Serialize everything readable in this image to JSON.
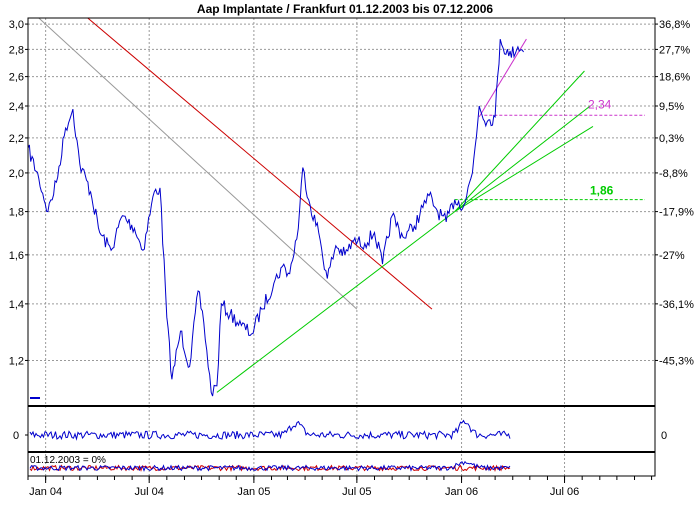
{
  "chart_data": {
    "type": "line",
    "title": "Aap Implantate / Frankfurt 01.12.2003 bis 07.12.2006",
    "y_scale": "log",
    "ylim": [
      1.06,
      3.05
    ],
    "x_range": [
      "2003-12-01",
      "2006-12-07"
    ],
    "grid": true,
    "y_ticks_left": [
      "3,0",
      "2,8",
      "2,6",
      "2,4",
      "2,2",
      "2,0",
      "1,8",
      "1,6",
      "1,4",
      "1,2"
    ],
    "y_ticks_right": [
      "36,8%",
      "27,7%",
      "18,6%",
      "9,5%",
      "0,3%",
      "-8,8%",
      "-17,9%",
      "-27%",
      "-36,1%",
      "-45,3%"
    ],
    "x_ticks": [
      {
        "date": "2004-01-01",
        "label": "Jan 04"
      },
      {
        "date": "2004-07-01",
        "label": "Jul 04"
      },
      {
        "date": "2005-01-01",
        "label": "Jan 05"
      },
      {
        "date": "2005-07-01",
        "label": "Jul 05"
      },
      {
        "date": "2006-01-01",
        "label": "Jan 06"
      },
      {
        "date": "2006-07-01",
        "label": "Jul 06"
      }
    ],
    "series": [
      {
        "color": "#0000cc",
        "points": [
          [
            "2003-12-01",
            2.14
          ],
          [
            "2003-12-20",
            1.97
          ],
          [
            "2004-01-05",
            1.8
          ],
          [
            "2004-01-20",
            1.95
          ],
          [
            "2004-02-05",
            2.26
          ],
          [
            "2004-02-18",
            2.38
          ],
          [
            "2004-03-01",
            2.05
          ],
          [
            "2004-03-20",
            1.9
          ],
          [
            "2004-04-05",
            1.7
          ],
          [
            "2004-04-25",
            1.62
          ],
          [
            "2004-05-15",
            1.78
          ],
          [
            "2004-06-05",
            1.72
          ],
          [
            "2004-06-20",
            1.62
          ],
          [
            "2004-07-10",
            1.9
          ],
          [
            "2004-07-20",
            1.92
          ],
          [
            "2004-08-01",
            1.35
          ],
          [
            "2004-08-10",
            1.14
          ],
          [
            "2004-08-25",
            1.3
          ],
          [
            "2004-09-10",
            1.18
          ],
          [
            "2004-09-25",
            1.45
          ],
          [
            "2004-10-05",
            1.33
          ],
          [
            "2004-10-18",
            1.1
          ],
          [
            "2004-10-28",
            1.12
          ],
          [
            "2004-11-05",
            1.4
          ],
          [
            "2004-11-20",
            1.36
          ],
          [
            "2004-12-10",
            1.32
          ],
          [
            "2004-12-28",
            1.29
          ],
          [
            "2005-01-15",
            1.38
          ],
          [
            "2005-02-05",
            1.48
          ],
          [
            "2005-02-20",
            1.55
          ],
          [
            "2005-03-05",
            1.52
          ],
          [
            "2005-03-20",
            1.72
          ],
          [
            "2005-03-28",
            2.03
          ],
          [
            "2005-04-10",
            1.83
          ],
          [
            "2005-04-25",
            1.7
          ],
          [
            "2005-05-10",
            1.5
          ],
          [
            "2005-05-25",
            1.64
          ],
          [
            "2005-06-10",
            1.6
          ],
          [
            "2005-06-25",
            1.66
          ],
          [
            "2005-07-15",
            1.65
          ],
          [
            "2005-08-01",
            1.7
          ],
          [
            "2005-08-15",
            1.56
          ],
          [
            "2005-09-01",
            1.78
          ],
          [
            "2005-09-20",
            1.68
          ],
          [
            "2005-10-10",
            1.73
          ],
          [
            "2005-10-25",
            1.82
          ],
          [
            "2005-11-05",
            1.88
          ],
          [
            "2005-11-20",
            1.8
          ],
          [
            "2005-12-05",
            1.75
          ],
          [
            "2005-12-20",
            1.86
          ],
          [
            "2006-01-05",
            1.83
          ],
          [
            "2006-01-20",
            2.0
          ],
          [
            "2006-02-01",
            2.4
          ],
          [
            "2006-02-15",
            2.3
          ],
          [
            "2006-03-01",
            2.33
          ],
          [
            "2006-03-10",
            2.88
          ],
          [
            "2006-03-25",
            2.75
          ],
          [
            "2006-04-10",
            2.82
          ],
          [
            "2006-04-20",
            2.78
          ]
        ]
      }
    ],
    "trendlines": [
      {
        "color": "#999999",
        "from": [
          "2003-12-20",
          3.05
        ],
        "to": [
          "2005-07-01",
          1.38
        ]
      },
      {
        "color": "#cc0000",
        "from": [
          "2004-03-15",
          3.05
        ],
        "to": [
          "2005-11-10",
          1.38
        ]
      },
      {
        "color": "#00cc00",
        "from": [
          "2004-10-28",
          1.1
        ],
        "to": [
          "2005-12-20",
          1.8
        ]
      },
      {
        "color": "#00cc00",
        "from": [
          "2005-12-20",
          1.8
        ],
        "to": [
          "2006-08-05",
          2.64
        ]
      },
      {
        "color": "#00cc00",
        "from": [
          "2005-12-20",
          1.8
        ],
        "to": [
          "2006-08-15",
          2.4
        ]
      },
      {
        "color": "#00cc00",
        "from": [
          "2005-12-20",
          1.8
        ],
        "to": [
          "2006-08-20",
          2.27
        ]
      },
      {
        "color": "#cc33cc",
        "from": [
          "2006-02-01",
          2.33
        ],
        "to": [
          "2006-04-25",
          2.88
        ]
      }
    ],
    "levels": [
      {
        "value": 2.34,
        "label": "2,34",
        "color": "#cc33cc"
      },
      {
        "value": 1.86,
        "label": "1,86",
        "color": "#00cc00"
      }
    ],
    "annotations": [
      "01.12.2003 = 0%"
    ],
    "sub_panels": [
      {
        "tick_label": "0"
      },
      {
        "label": "01.12.2003 = 0%"
      }
    ]
  }
}
